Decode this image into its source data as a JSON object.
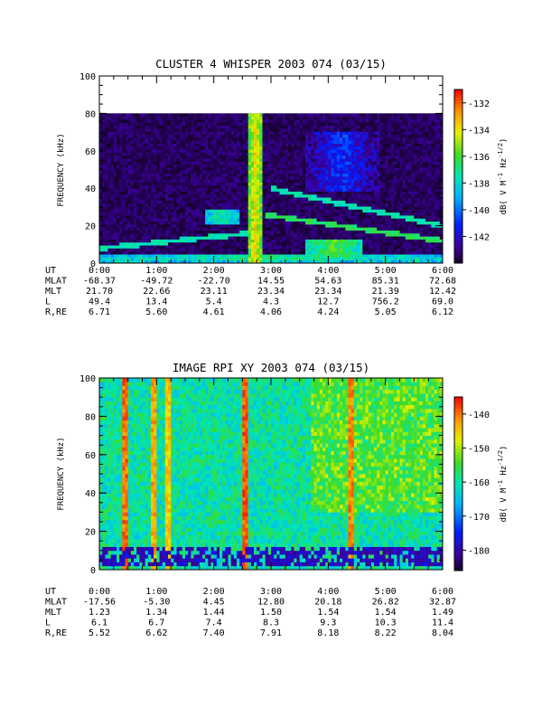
{
  "chart_data": [
    {
      "type": "heatmap",
      "title": "CLUSTER 4 WHISPER 2003 074 (03/15)",
      "ylabel": "FREQUENCY (kHz)",
      "ylim": [
        0,
        100
      ],
      "y_ticks": [
        "0",
        "20",
        "40",
        "60",
        "80",
        "100"
      ],
      "x_ticks": [
        "0:00",
        "1:00",
        "2:00",
        "3:00",
        "4:00",
        "5:00",
        "6:00"
      ],
      "xlim_hours": [
        0,
        6
      ],
      "data_ylim": [
        0,
        80
      ],
      "colorbar": {
        "label": "dB( V M⁻¹ Hz⁻¹ᐟ²)",
        "label_text": "dB( V M",
        "label_sup1": "-1",
        "label_mid": " Hz",
        "label_sup2": "-1/2",
        "label_end": ")",
        "range": [
          -144,
          -131
        ],
        "ticks": [
          "-132",
          "-134",
          "-136",
          "-138",
          "-140",
          "-142"
        ],
        "tick_values": [
          -132,
          -134,
          -136,
          -138,
          -140,
          -142
        ]
      },
      "features": {
        "background_db": -144,
        "emission_bands": [
          {
            "time": [
              0.0,
              6.0
            ],
            "freq_start": 3,
            "freq_end": 3,
            "db": -136
          },
          {
            "time": [
              1.85,
              2.45
            ],
            "freq_start": 22,
            "freq_end": 28,
            "db": -136
          },
          {
            "time": [
              3.6,
              4.9
            ],
            "freq_start": 40,
            "freq_end": 70,
            "db": -140
          },
          {
            "time": [
              2.6,
              2.85
            ],
            "freq_start": 0,
            "freq_end": 80,
            "db": -133
          },
          {
            "time": [
              3.6,
              4.6
            ],
            "freq_start": 5,
            "freq_end": 12,
            "db": -135
          }
        ],
        "harmonic_lines": [
          {
            "time": [
              0.0,
              2.6
            ],
            "f0": 8,
            "f1": 16,
            "db": -137
          },
          {
            "time": [
              3.0,
              6.0
            ],
            "f0": 40,
            "f1": 20,
            "db": -137
          },
          {
            "time": [
              2.9,
              6.0
            ],
            "f0": 26,
            "f1": 12,
            "db": -136
          }
        ]
      },
      "ephemeris": {
        "rows": [
          {
            "label": "UT",
            "values": [
              "0:00",
              "1:00",
              "2:00",
              "3:00",
              "4:00",
              "5:00",
              "6:00"
            ]
          },
          {
            "label": "MLAT",
            "values": [
              "-68.37",
              "-49.72",
              "-22.70",
              "14.55",
              "54.63",
              "85.31",
              "72.68"
            ]
          },
          {
            "label": "MLT",
            "values": [
              "21.70",
              "22.66",
              "23.11",
              "23.34",
              "23.34",
              "21.39",
              "12.42"
            ]
          },
          {
            "label": "L",
            "values": [
              "49.4",
              "13.4",
              "5.4",
              "4.3",
              "12.7",
              "756.2",
              "69.0"
            ]
          },
          {
            "label": "R,RE",
            "values": [
              "6.71",
              "5.60",
              "4.61",
              "4.06",
              "4.24",
              "5.05",
              "6.12"
            ]
          }
        ]
      }
    },
    {
      "type": "heatmap",
      "title": "IMAGE RPI XY 2003 074 (03/15)",
      "ylabel": "FREQUENCY (kHz)",
      "ylim": [
        0,
        100
      ],
      "y_ticks": [
        "0",
        "20",
        "40",
        "60",
        "80",
        "100"
      ],
      "x_ticks": [
        "0:00",
        "1:00",
        "2:00",
        "3:00",
        "4:00",
        "5:00",
        "6:00"
      ],
      "xlim_hours": [
        0,
        6
      ],
      "colorbar": {
        "label_text": "dB( V M",
        "label_sup1": "-1",
        "label_mid": " Hz",
        "label_sup2": "-1/2",
        "label_end": ")",
        "range": [
          -186,
          -135
        ],
        "ticks": [
          "-140",
          "-150",
          "-160",
          "-170",
          "-180"
        ],
        "tick_values": [
          -140,
          -150,
          -160,
          -170,
          -180
        ]
      },
      "features": {
        "background_db": -160,
        "bright_columns": [
          {
            "time": 0.45,
            "db": -137
          },
          {
            "time": 0.95,
            "db": -140
          },
          {
            "time": 1.2,
            "db": -142
          },
          {
            "time": 2.55,
            "db": -136
          },
          {
            "time": 4.4,
            "db": -138
          }
        ],
        "low_frequency_band": {
          "freq": [
            2,
            12
          ],
          "db": -182
        }
      },
      "ephemeris": {
        "rows": [
          {
            "label": "UT",
            "values": [
              "0:00",
              "1:00",
              "2:00",
              "3:00",
              "4:00",
              "5:00",
              "6:00"
            ]
          },
          {
            "label": "MLAT",
            "values": [
              "-17.56",
              "-5.30",
              "4.45",
              "12.80",
              "20.18",
              "26.82",
              "32.87"
            ]
          },
          {
            "label": "MLT",
            "values": [
              "1.23",
              "1.34",
              "1.44",
              "1.50",
              "1.54",
              "1.54",
              "1.49"
            ]
          },
          {
            "label": "L",
            "values": [
              "6.1",
              "6.7",
              "7.4",
              "8.3",
              "9.3",
              "10.3",
              "11.4"
            ]
          },
          {
            "label": "R,RE",
            "values": [
              "5.52",
              "6.62",
              "7.40",
              "7.91",
              "8.18",
              "8.22",
              "8.04"
            ]
          }
        ]
      }
    }
  ]
}
